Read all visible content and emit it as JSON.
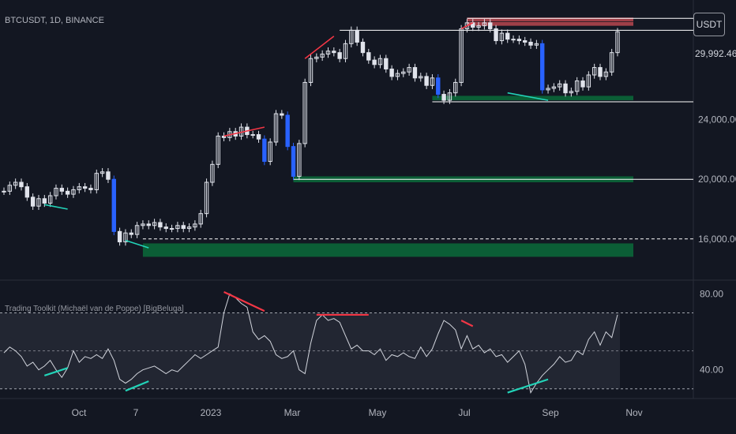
{
  "symbol_label": "BTCUSDT, 1D, BINANCE",
  "currency_button": "USDT",
  "last_price": "29,992.46",
  "indicator_title": "Trading Toolkit (Michaël van de Poppe) [BigBeluga]",
  "colors": {
    "background": "#131722",
    "candle": "#e0e3eb",
    "bear_highlight": "#2962ff",
    "bearish_div": "#f23645",
    "bullish_div": "#22d3b8",
    "support_zone": "#0b6b3a",
    "resistance_zone": "#b8474f",
    "osc_band": "#2a2e39"
  },
  "chart_data": [
    {
      "type": "line",
      "title": "BTCUSDT, 1D, BINANCE",
      "xlabel": "",
      "ylabel": "",
      "x_ticks": [
        "Oct",
        "7",
        "2023",
        "Mar",
        "May",
        "Jul",
        "Sep",
        "Nov"
      ],
      "y_ticks": [
        {
          "value": 24000,
          "label": "24,000.00"
        },
        {
          "value": 20000,
          "label": "20,000.00"
        },
        {
          "value": 16000,
          "label": "16,000.00"
        }
      ],
      "ylim": [
        13500,
        31500
      ],
      "last_price": 29992.46,
      "series": [
        {
          "values": [
            19200,
            19600,
            19800,
            19500,
            18800,
            18200,
            18700,
            18400,
            18900,
            19400,
            19200,
            19000,
            19300,
            19500,
            19400,
            19300,
            20400,
            20500,
            20000,
            16500,
            15800,
            16400,
            16300,
            16900,
            17000,
            16900,
            17100,
            16800,
            16700,
            16700,
            16900,
            16700,
            16800,
            17000,
            17700,
            19800,
            21000,
            22900,
            22800,
            23200,
            22900,
            23500,
            23000,
            23000,
            22700,
            21200,
            22500,
            24400,
            24300,
            22200,
            20200,
            22400,
            26500,
            28100,
            28200,
            28400,
            28600,
            28500,
            28100,
            29100,
            30000,
            29200,
            28500,
            28000,
            27700,
            28100,
            27400,
            26900,
            27100,
            27200,
            27500,
            26800,
            26900,
            26300,
            26800,
            25700,
            25300,
            25800,
            26500,
            30100,
            30500,
            30200,
            30300,
            30500,
            30100,
            29300,
            29800,
            29400,
            29400,
            29300,
            29200,
            29000,
            29100,
            26000,
            26100,
            26200,
            26400,
            25800,
            25900,
            26600,
            26200,
            27000,
            27500,
            26900,
            27200,
            28500,
            29900
          ]
        }
      ],
      "annotations": {
        "support_zones": [
          {
            "from_index": 24,
            "y_top": 15700,
            "y_bottom": 14800,
            "level": 16000
          },
          {
            "from_index": 50,
            "y_top": 20200,
            "y_bottom": 19800,
            "level": 20000
          },
          {
            "from_index": 74,
            "y_top": 25600,
            "y_bottom": 25300,
            "level": 25200
          }
        ],
        "resistance_zones": [
          {
            "from_index": 80,
            "y_top": 30850,
            "y_bottom": 30600
          },
          {
            "from_index": 80,
            "y_top": 30560,
            "y_bottom": 30300
          }
        ],
        "level_lines": [
          {
            "from_index": 58,
            "y": 30000
          },
          {
            "from_index": 80,
            "y": 30800
          }
        ],
        "bearish_divergences": [
          {
            "from": [
              52,
              28100
            ],
            "to": [
              57,
              29600
            ]
          },
          {
            "from": [
              38,
              22900
            ],
            "to": [
              45,
              23500
            ]
          },
          {
            "from": [
              79,
              30100
            ],
            "to": [
              81,
              30500
            ]
          }
        ],
        "bullish_divergences": [
          {
            "from": [
              7,
              18300
            ],
            "to": [
              11,
              18000
            ]
          },
          {
            "from": [
              21,
              15900
            ],
            "to": [
              25,
              15400
            ]
          },
          {
            "from": [
              87,
              25800
            ],
            "to": [
              94,
              25300
            ]
          }
        ]
      }
    },
    {
      "type": "line",
      "title": "Trading Toolkit (Michaël van de Poppe) [BigBeluga]",
      "y_ticks": [
        {
          "value": 80,
          "label": "80.00"
        },
        {
          "value": 40,
          "label": "40.00"
        }
      ],
      "ylim": [
        27,
        86
      ],
      "levels": [
        70,
        50,
        30
      ],
      "series": [
        {
          "values": [
            49,
            52,
            50,
            47,
            42,
            44,
            40,
            42,
            45,
            40,
            36,
            41,
            50,
            44,
            47,
            46,
            48,
            46,
            51,
            45,
            35,
            33,
            35,
            38,
            40,
            41,
            42,
            40,
            38,
            40,
            39,
            42,
            45,
            48,
            46,
            48,
            50,
            52,
            70,
            80,
            78,
            75,
            73,
            60,
            56,
            58,
            55,
            48,
            46,
            47,
            50,
            40,
            38,
            54,
            66,
            69,
            66,
            67,
            65,
            58,
            51,
            53,
            50,
            50,
            48,
            51,
            45,
            48,
            47,
            49,
            47,
            46,
            52,
            47,
            51,
            59,
            66,
            64,
            61,
            51,
            58,
            51,
            53,
            49,
            51,
            47,
            48,
            44,
            47,
            50,
            43,
            28,
            33,
            37,
            40,
            43,
            47,
            44,
            45,
            50,
            48,
            56,
            60,
            53,
            60,
            57,
            69
          ]
        }
      ],
      "divergences": [
        {
          "kind": "bearish",
          "from": [
            38,
            81
          ],
          "to": [
            45,
            71
          ]
        },
        {
          "kind": "bearish",
          "from": [
            54,
            69
          ],
          "to": [
            63,
            69
          ]
        },
        {
          "kind": "bearish",
          "from": [
            79,
            66
          ],
          "to": [
            81,
            63
          ]
        },
        {
          "kind": "bullish",
          "from": [
            7,
            37
          ],
          "to": [
            11,
            41
          ]
        },
        {
          "kind": "bullish",
          "from": [
            21,
            29
          ],
          "to": [
            25,
            34
          ]
        },
        {
          "kind": "bullish",
          "from": [
            87,
            28
          ],
          "to": [
            94,
            35
          ]
        }
      ]
    }
  ]
}
